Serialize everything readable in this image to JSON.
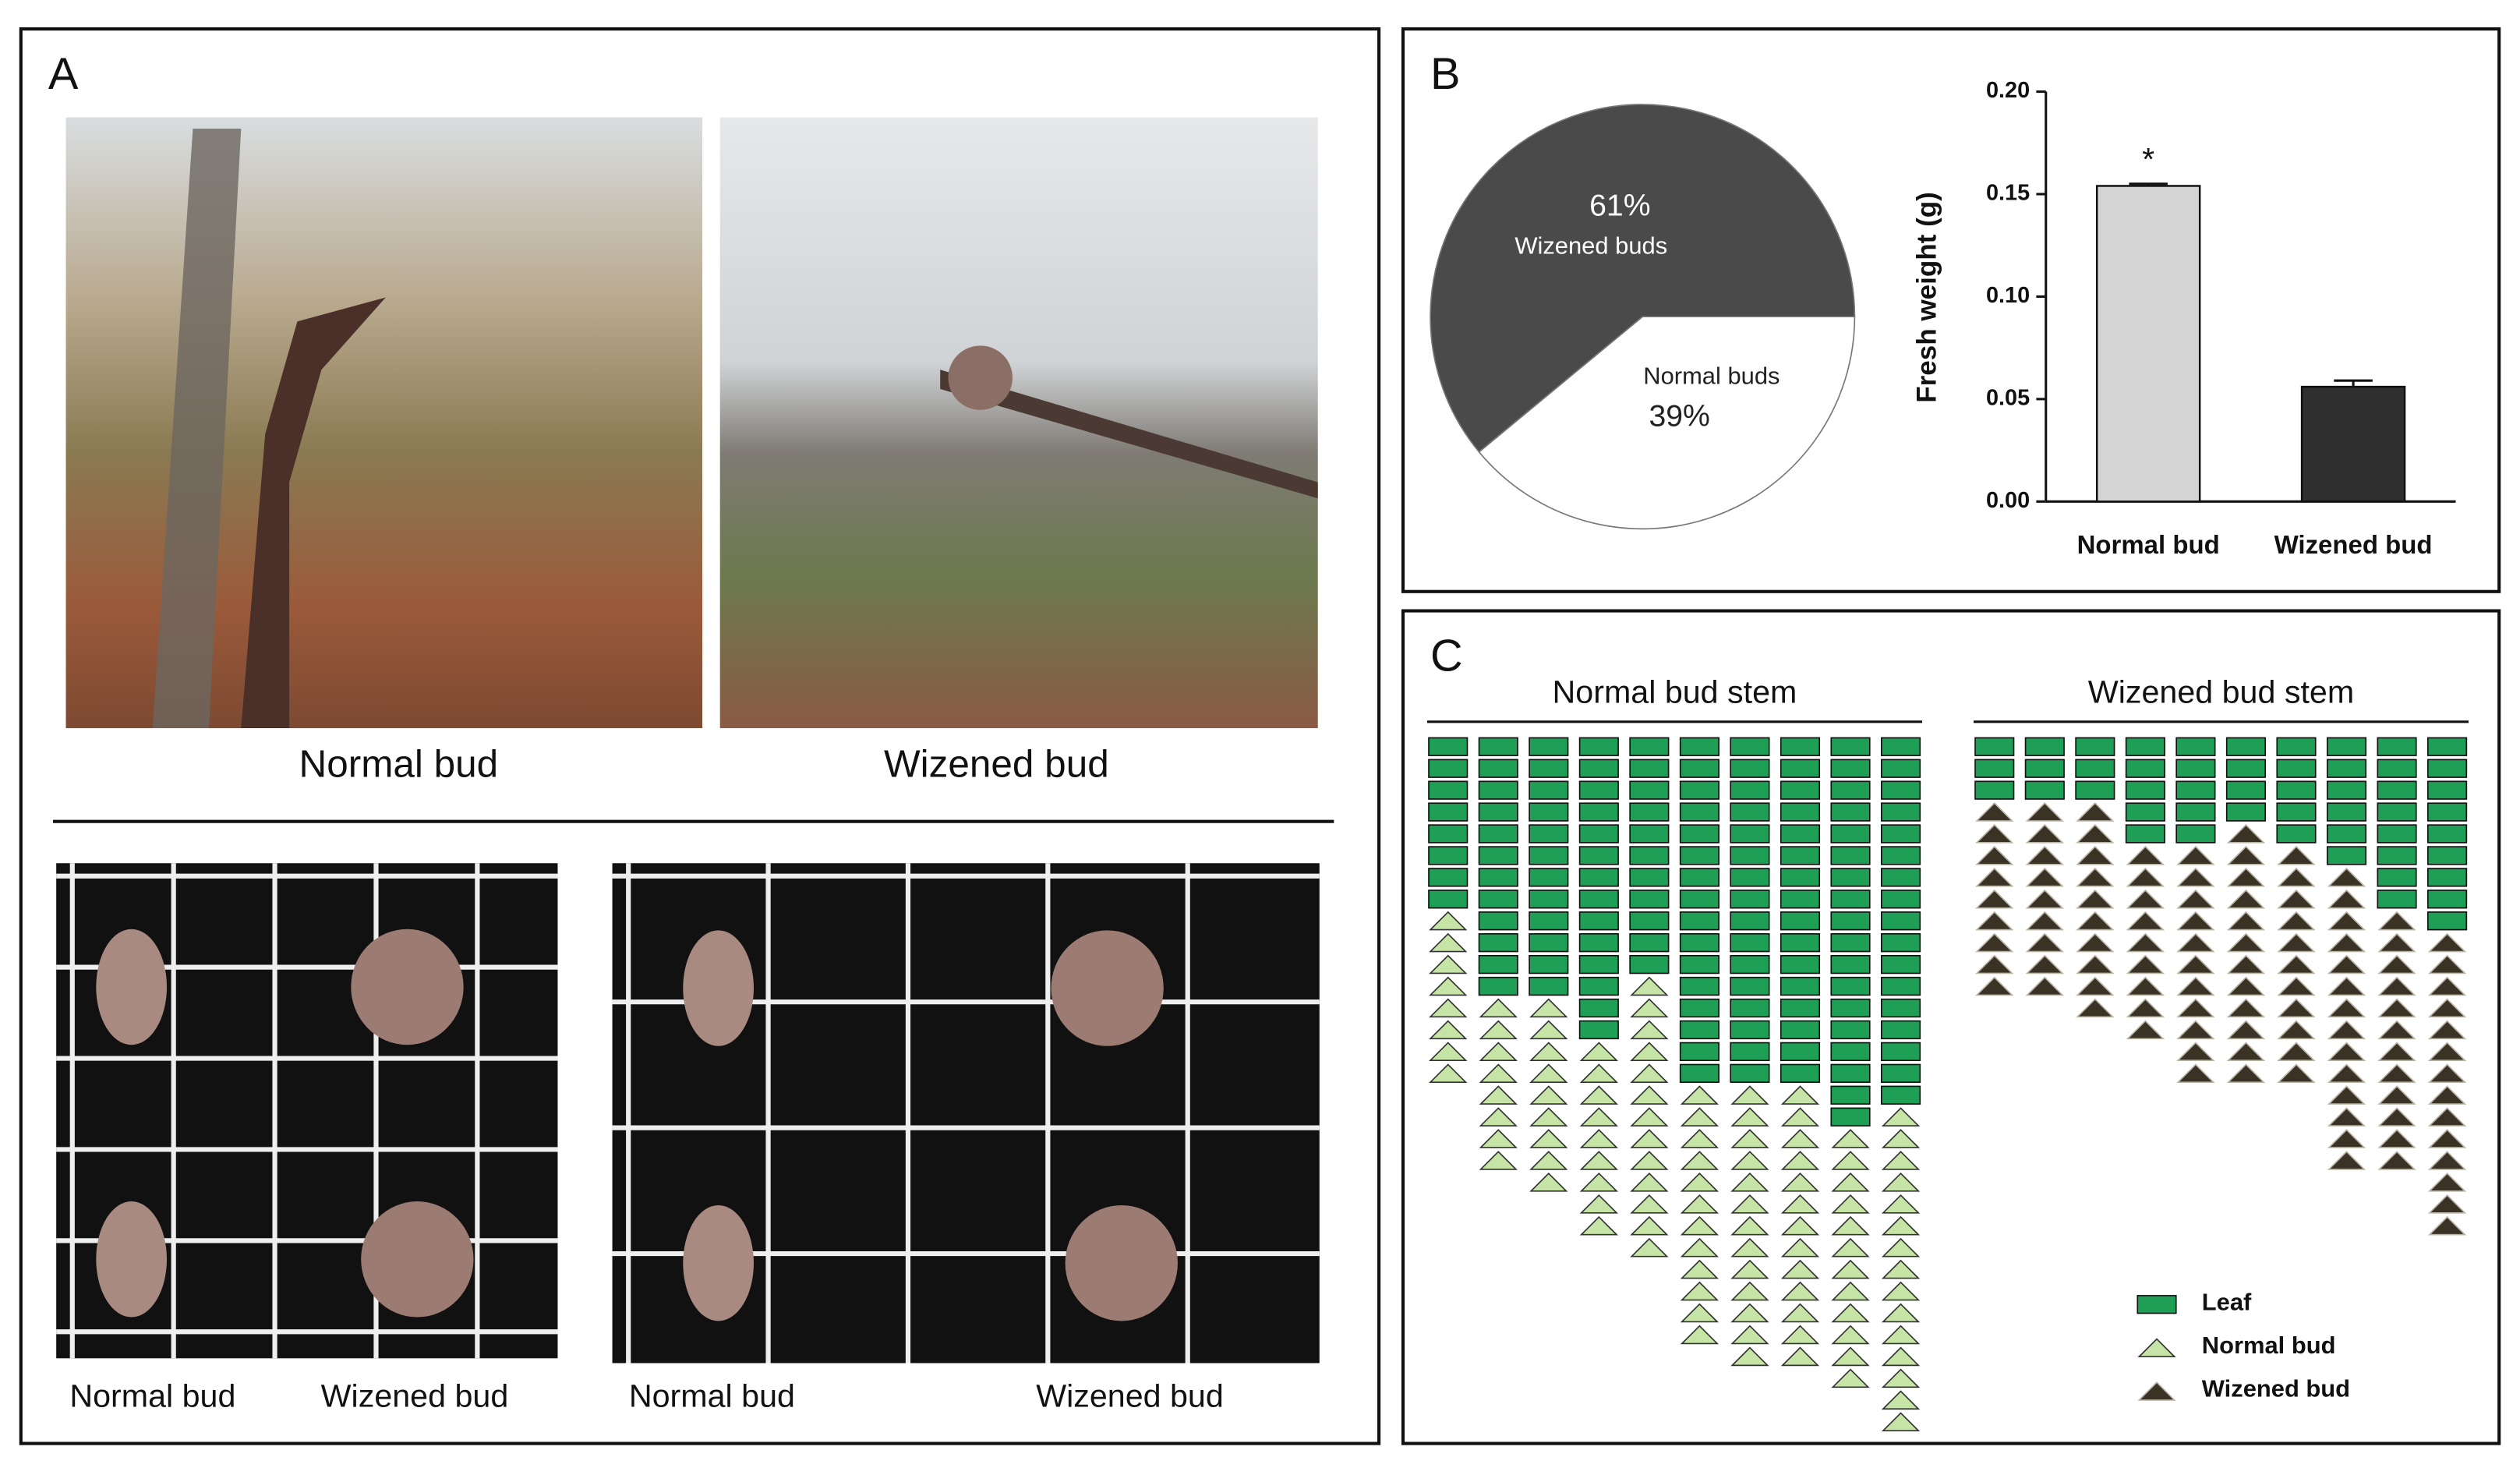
{
  "panel_a": {
    "label": "A",
    "top_captions": [
      "Normal bud",
      "Wizened bud"
    ],
    "bottom_captions": [
      "Normal bud",
      "Wizened bud",
      "Normal bud",
      "Wizened bud"
    ]
  },
  "panel_b": {
    "label": "B"
  },
  "chart_data": [
    {
      "type": "pie",
      "categories": [
        "Wizened buds",
        "Normal buds"
      ],
      "values": [
        61,
        39
      ],
      "value_labels": [
        "61%",
        "39%"
      ],
      "colors": [
        "#4a4a4a",
        "#ffffff"
      ]
    },
    {
      "type": "bar",
      "ylabel": "Fresh weight (g)",
      "categories": [
        "Normal bud",
        "Wizened bud"
      ],
      "values": [
        0.154,
        0.056
      ],
      "errors": [
        0.001,
        0.003
      ],
      "colors": [
        "#d4d4d4",
        "#2f2f2f"
      ],
      "annotations": [
        "*",
        null
      ],
      "ylim": [
        0,
        0.2
      ],
      "yticks": [
        {
          "value": 0,
          "label": "0.00"
        },
        {
          "value": 0.05,
          "label": "0.05"
        },
        {
          "value": 0.1,
          "label": "0.10"
        },
        {
          "value": 0.15,
          "label": "0.15"
        },
        {
          "value": 0.2,
          "label": "0.20"
        }
      ]
    }
  ],
  "panel_c": {
    "label": "C",
    "stems": [
      {
        "title": "Normal bud stem",
        "bud_type": 1,
        "leaf": [
          8,
          12,
          12,
          14,
          11,
          16,
          16,
          16,
          18,
          17
        ],
        "bud": [
          8,
          8,
          9,
          9,
          13,
          12,
          13,
          13,
          12,
          15
        ]
      },
      {
        "title": "Wizened bud stem",
        "bud_type": 2,
        "leaf": [
          3,
          3,
          3,
          5,
          5,
          4,
          5,
          6,
          8,
          9
        ],
        "bud": [
          9,
          9,
          10,
          9,
          11,
          12,
          11,
          14,
          12,
          14
        ]
      }
    ],
    "legend": [
      "Leaf",
      "Normal bud",
      "Wizened bud"
    ],
    "colors": [
      "#1f9e55",
      "#c6e4a6",
      "#3b3226"
    ]
  }
}
